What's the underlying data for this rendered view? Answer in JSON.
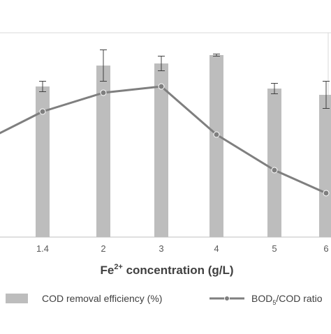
{
  "chart_data": {
    "type": "bar",
    "categories": [
      "1.4",
      "2",
      "3",
      "4",
      "5",
      "6"
    ],
    "xlabel_main": "Fe",
    "xlabel_sup": "2+",
    "xlabel_rest": " concentration (g/L)",
    "ylabel": "",
    "ylim": [
      0,
      100
    ],
    "grid": false,
    "legend_position": "bottom",
    "series": [
      {
        "name": "COD removal efficiency (%)",
        "type": "bar",
        "values": [
          72,
          82,
          83,
          87,
          71,
          68
        ],
        "errors": [
          2.5,
          7.5,
          3.5,
          0.5,
          2.5,
          6.5
        ],
        "color": "#bdbdbd"
      },
      {
        "name_main": "BOD",
        "name_sub": "5",
        "name_rest": "/COD ratio",
        "type": "line",
        "values": [
          60,
          69,
          72,
          49,
          32,
          21
        ],
        "offscreen_left_value": 46,
        "color": "#7f7f7f"
      }
    ]
  }
}
